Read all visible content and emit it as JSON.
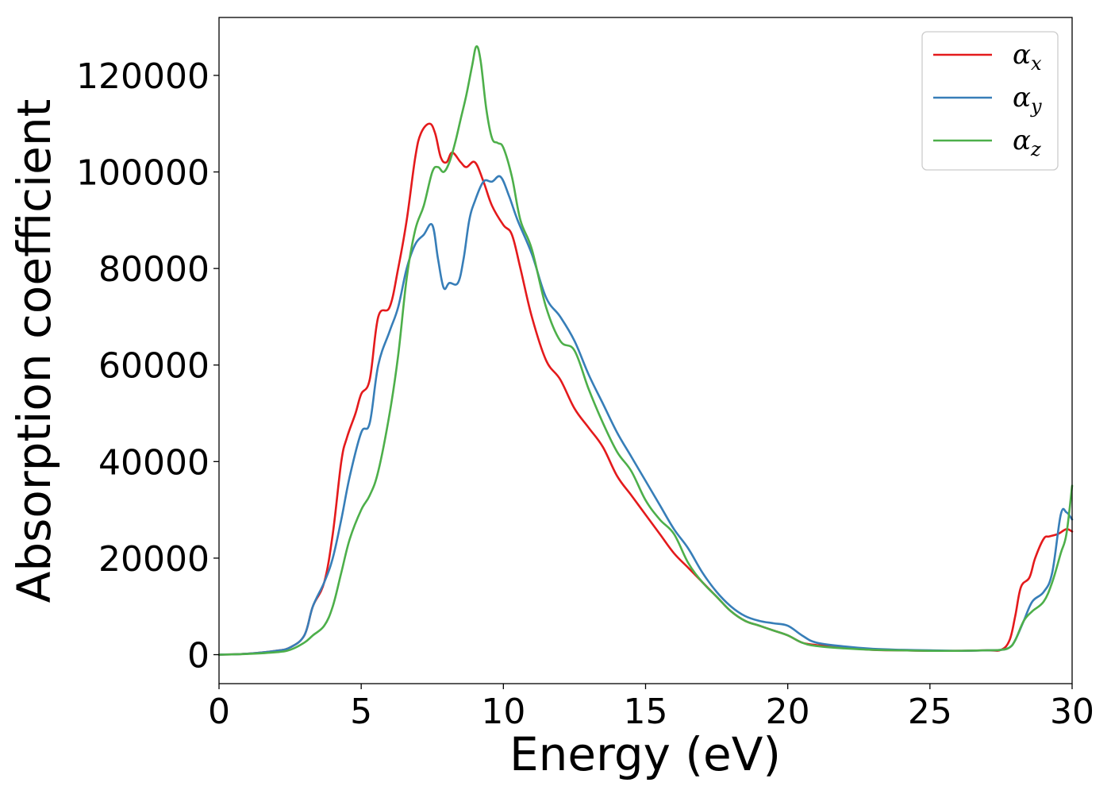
{
  "chart_data": {
    "type": "line",
    "title": "",
    "xlabel": "Energy (eV)",
    "ylabel": "Absorption coefficient",
    "xlim": [
      0,
      30
    ],
    "ylim": [
      -6000,
      132000
    ],
    "xticks": [
      0,
      5,
      10,
      15,
      20,
      25,
      30
    ],
    "yticks": [
      0,
      20000,
      40000,
      60000,
      80000,
      100000,
      120000
    ],
    "grid": false,
    "legend_position": "top-right",
    "series": [
      {
        "name": "αx",
        "symbol": "α",
        "subscript": "x",
        "color": "#e41a1c",
        "x": [
          0,
          1,
          2,
          2.5,
          3,
          3.3,
          3.7,
          4,
          4.3,
          4.5,
          4.8,
          5,
          5.3,
          5.6,
          6,
          6.3,
          6.6,
          6.9,
          7.1,
          7.4,
          7.6,
          7.8,
          8.0,
          8.2,
          8.5,
          8.7,
          9.0,
          9.3,
          9.6,
          10,
          10.3,
          10.6,
          11,
          11.5,
          12,
          12.5,
          13,
          13.5,
          14,
          14.5,
          15,
          15.5,
          16,
          16.5,
          17,
          17.5,
          18,
          18.5,
          19,
          19.5,
          20,
          20.5,
          21,
          22,
          23,
          24,
          25,
          26,
          27,
          27.5,
          27.8,
          28,
          28.2,
          28.5,
          28.7,
          29,
          29.2,
          29.5,
          29.8,
          30
        ],
        "y": [
          0,
          200,
          800,
          1500,
          4000,
          10000,
          15000,
          25000,
          40000,
          45000,
          50000,
          54000,
          57000,
          70000,
          72000,
          80000,
          90000,
          103000,
          108000,
          110000,
          108000,
          103000,
          102000,
          104000,
          102000,
          101000,
          102000,
          98000,
          93000,
          89000,
          87000,
          80000,
          70000,
          61000,
          57000,
          51000,
          47000,
          43000,
          37000,
          33000,
          29000,
          25000,
          21000,
          18000,
          15000,
          12000,
          9000,
          7000,
          6000,
          5000,
          4000,
          2500,
          2000,
          1500,
          1000,
          900,
          800,
          800,
          900,
          1000,
          3000,
          8000,
          14000,
          16000,
          20000,
          24000,
          24500,
          25000,
          26000,
          25500
        ]
      },
      {
        "name": "αy",
        "symbol": "α",
        "subscript": "y",
        "color": "#377eb8",
        "x": [
          0,
          1,
          2,
          2.5,
          3,
          3.3,
          3.7,
          4,
          4.3,
          4.6,
          5,
          5.3,
          5.6,
          6,
          6.3,
          6.6,
          6.9,
          7.2,
          7.5,
          7.7,
          7.9,
          8.1,
          8.4,
          8.6,
          8.8,
          9.0,
          9.3,
          9.6,
          9.9,
          10.2,
          10.5,
          11,
          11.5,
          12,
          12.5,
          13,
          13.5,
          14,
          14.5,
          15,
          15.5,
          16,
          16.5,
          17,
          17.5,
          18,
          18.5,
          19,
          19.5,
          20,
          20.5,
          21,
          22,
          23,
          24,
          25,
          26,
          27,
          27.5,
          27.8,
          28,
          28.3,
          28.6,
          29,
          29.3,
          29.6,
          29.8,
          30
        ],
        "y": [
          0,
          200,
          800,
          1500,
          4000,
          10000,
          15000,
          20000,
          28000,
          37000,
          46000,
          48000,
          60000,
          67000,
          72000,
          80000,
          85000,
          87000,
          89000,
          82000,
          76000,
          77000,
          77000,
          82000,
          90000,
          94000,
          98000,
          98000,
          99000,
          95000,
          90000,
          83000,
          74000,
          70000,
          65000,
          58000,
          52000,
          46000,
          41000,
          36000,
          31000,
          26000,
          22000,
          17000,
          13000,
          10000,
          8000,
          7000,
          6500,
          6000,
          4000,
          2500,
          1700,
          1200,
          1000,
          900,
          800,
          900,
          1000,
          1500,
          3000,
          7000,
          11000,
          13000,
          17000,
          29000,
          29500,
          28000
        ]
      },
      {
        "name": "αz",
        "symbol": "α",
        "subscript": "z",
        "color": "#4daf4a",
        "x": [
          0,
          1,
          2,
          2.5,
          3,
          3.3,
          3.7,
          4,
          4.3,
          4.6,
          5,
          5.3,
          5.6,
          6,
          6.3,
          6.6,
          6.9,
          7.2,
          7.5,
          7.7,
          7.9,
          8.1,
          8.3,
          8.5,
          8.7,
          8.9,
          9.05,
          9.2,
          9.4,
          9.6,
          9.8,
          10,
          10.3,
          10.6,
          11,
          11.5,
          12,
          12.5,
          13,
          13.5,
          14,
          14.5,
          15,
          15.5,
          16,
          16.5,
          17,
          17.5,
          18,
          18.5,
          19,
          19.5,
          20,
          20.5,
          21,
          22,
          23,
          24,
          25,
          26,
          27,
          27.5,
          27.8,
          28,
          28.3,
          28.6,
          29,
          29.3,
          29.6,
          29.8,
          30
        ],
        "y": [
          0,
          150,
          500,
          1000,
          2500,
          4000,
          6000,
          10000,
          17000,
          24000,
          30000,
          33000,
          38000,
          50000,
          62000,
          78000,
          88000,
          93000,
          100000,
          101000,
          100000,
          102000,
          106000,
          111000,
          116000,
          122000,
          126000,
          123000,
          113000,
          107000,
          106000,
          105000,
          99000,
          90000,
          84000,
          72000,
          65000,
          63000,
          55000,
          48000,
          42000,
          38000,
          32000,
          28000,
          25000,
          19000,
          15000,
          12000,
          9000,
          7000,
          6000,
          5000,
          4000,
          2500,
          1800,
          1300,
          1000,
          900,
          800,
          800,
          900,
          1000,
          1500,
          3000,
          7000,
          9000,
          11000,
          15000,
          21000,
          25000,
          35000
        ]
      }
    ]
  }
}
